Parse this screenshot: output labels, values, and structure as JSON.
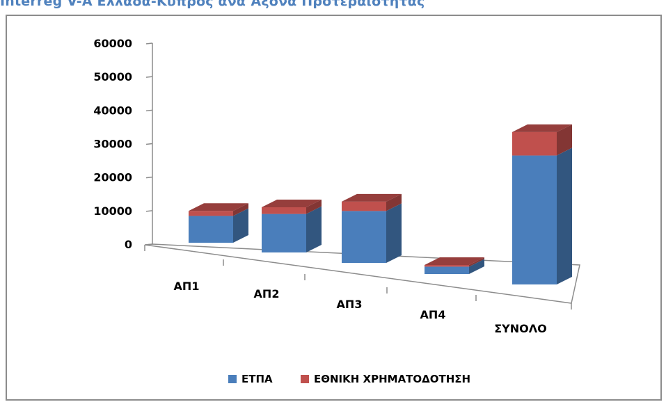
{
  "title": "Interreg V-A Ελλάδα-Κύπρος ανά Άξονα Προτεραιότητας",
  "chart_data": {
    "type": "bar",
    "stacked": true,
    "three_d": true,
    "categories": [
      "ΑΠ1",
      "ΑΠ2",
      "ΑΠ3",
      "ΑΠ4",
      "ΣΥΝΟΛΟ"
    ],
    "series": [
      {
        "name": "ΕΤΠΑ",
        "color": "#4a7ebb",
        "values": [
          8000,
          11500,
          15500,
          2200,
          38500
        ]
      },
      {
        "name": "ΕΘΝΙΚΗ ΧΡΗΜΑΤΟΔΟΤΗΣΗ",
        "color": "#c0504d",
        "values": [
          1500,
          2000,
          2800,
          500,
          7000
        ]
      }
    ],
    "yticks": [
      "0",
      "10000",
      "20000",
      "30000",
      "40000",
      "50000",
      "60000"
    ],
    "ylim": [
      0,
      60000
    ],
    "legend_position": "bottom",
    "grid": false
  }
}
